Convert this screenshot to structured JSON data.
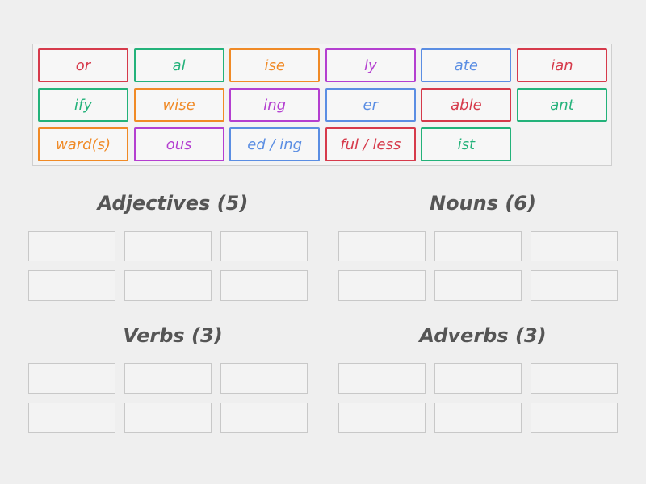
{
  "tiles": [
    {
      "label": "or",
      "color": "#d63a4b"
    },
    {
      "label": "al",
      "color": "#23b27a"
    },
    {
      "label": "ise",
      "color": "#f08a26"
    },
    {
      "label": "ly",
      "color": "#b43fd0"
    },
    {
      "label": "ate",
      "color": "#5b8ee3"
    },
    {
      "label": "ian",
      "color": "#d63a4b"
    },
    {
      "label": "ify",
      "color": "#23b27a"
    },
    {
      "label": "wise",
      "color": "#f08a26"
    },
    {
      "label": "ing",
      "color": "#b43fd0"
    },
    {
      "label": "er",
      "color": "#5b8ee3"
    },
    {
      "label": "able",
      "color": "#d63a4b"
    },
    {
      "label": "ant",
      "color": "#23b27a"
    },
    {
      "label": "ward(s)",
      "color": "#f08a26"
    },
    {
      "label": "ous",
      "color": "#b43fd0"
    },
    {
      "label": "ed / ing",
      "color": "#5b8ee3"
    },
    {
      "label": "ful / less",
      "color": "#d63a4b"
    },
    {
      "label": "ist",
      "color": "#23b27a"
    }
  ],
  "groups": [
    {
      "title": "Adjectives (5)"
    },
    {
      "title": "Nouns (6)"
    },
    {
      "title": "Verbs (3)"
    },
    {
      "title": "Adverbs (3)"
    }
  ]
}
